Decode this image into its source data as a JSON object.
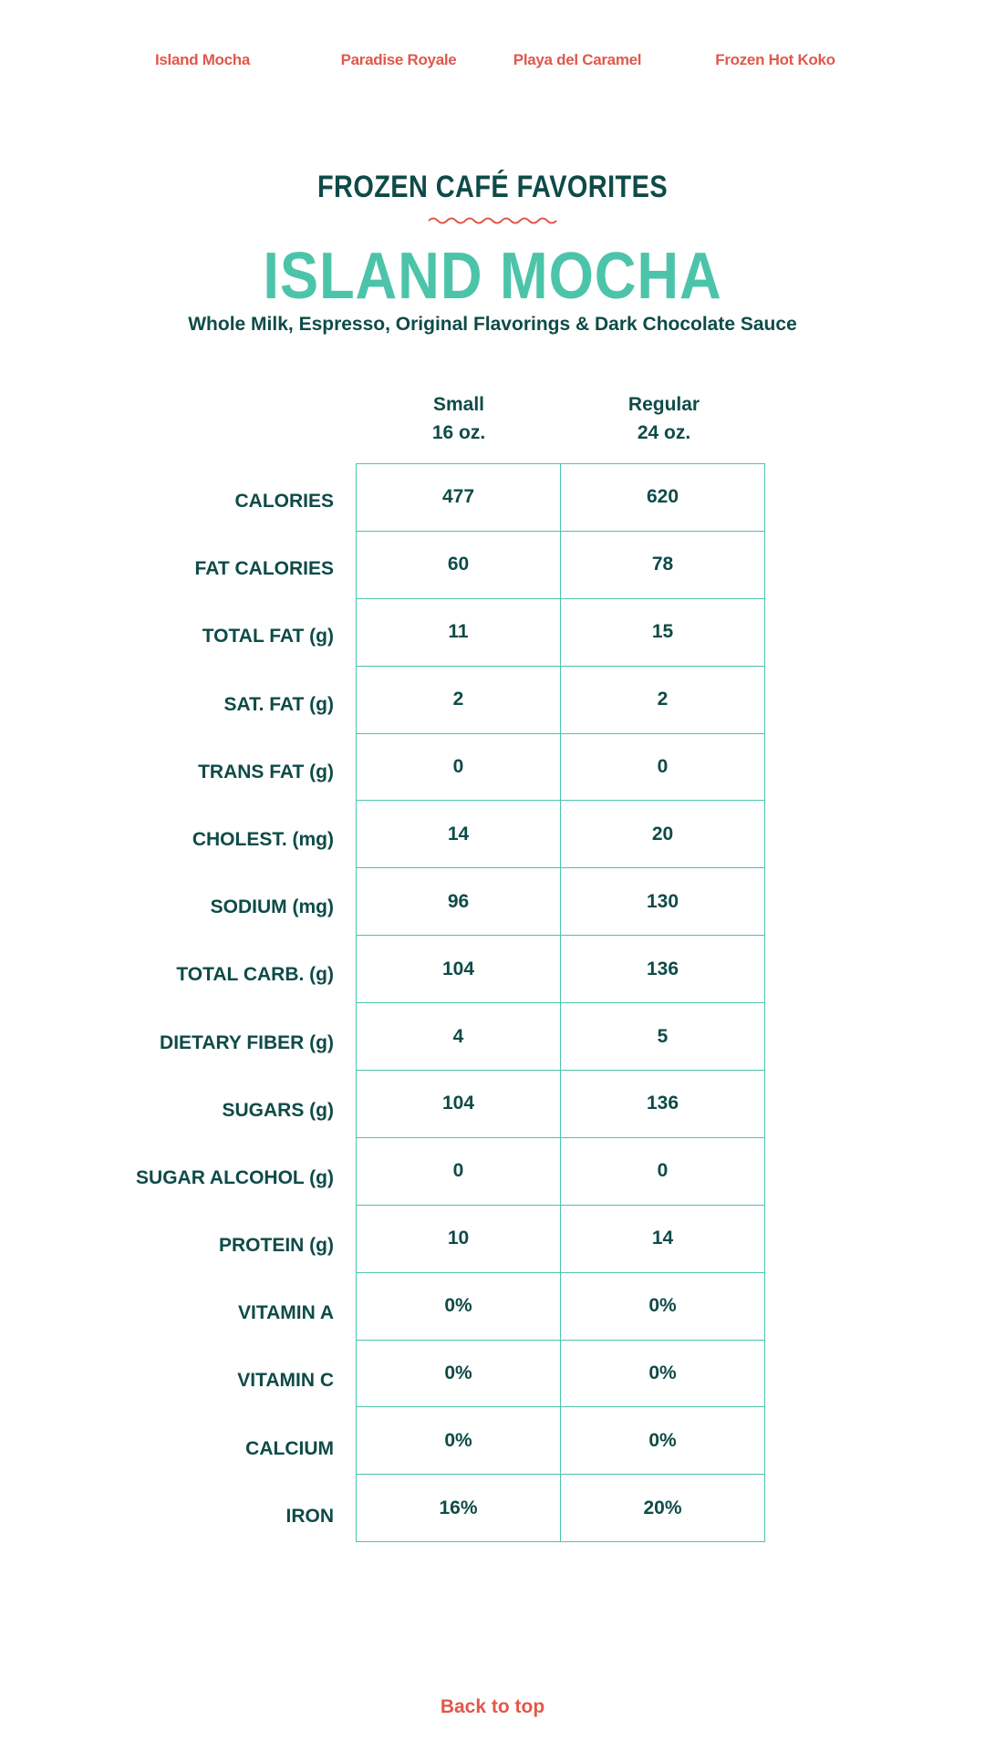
{
  "nav": {
    "items": [
      {
        "label": "Island Mocha"
      },
      {
        "label": "Paradise Royale"
      },
      {
        "label": "Playa del Caramel"
      },
      {
        "label": "Frozen Hot Koko"
      }
    ]
  },
  "header": {
    "eyebrow": "FROZEN CAFÉ FAVORITES",
    "title": "ISLAND MOCHA",
    "subtitle": "Whole Milk, Espresso, Original Flavorings & Dark Chocolate Sauce"
  },
  "columns": [
    {
      "size": "Small",
      "volume": "16 oz."
    },
    {
      "size": "Regular",
      "volume": "24 oz."
    }
  ],
  "rows": [
    {
      "label": "CALORIES",
      "small": "477",
      "regular": "620"
    },
    {
      "label": "FAT CALORIES",
      "small": "60",
      "regular": "78"
    },
    {
      "label": "TOTAL FAT (g)",
      "small": "11",
      "regular": "15"
    },
    {
      "label": "SAT. FAT (g)",
      "small": "2",
      "regular": "2"
    },
    {
      "label": "TRANS FAT (g)",
      "small": "0",
      "regular": "0"
    },
    {
      "label": "CHOLEST. (mg)",
      "small": "14",
      "regular": "20"
    },
    {
      "label": "SODIUM (mg)",
      "small": "96",
      "regular": "130"
    },
    {
      "label": "TOTAL CARB. (g)",
      "small": "104",
      "regular": "136"
    },
    {
      "label": "DIETARY FIBER (g)",
      "small": "4",
      "regular": "5"
    },
    {
      "label": "SUGARS (g)",
      "small": "104",
      "regular": "136"
    },
    {
      "label": "SUGAR ALCOHOL (g)",
      "small": "0",
      "regular": "0"
    },
    {
      "label": "PROTEIN (g)",
      "small": "10",
      "regular": "14"
    },
    {
      "label": "VITAMIN A",
      "small": "0%",
      "regular": "0%"
    },
    {
      "label": "VITAMIN C",
      "small": "0%",
      "regular": "0%"
    },
    {
      "label": "CALCIUM",
      "small": "0%",
      "regular": "0%"
    },
    {
      "label": "IRON",
      "small": "16%",
      "regular": "20%"
    }
  ],
  "footer": {
    "back_to_top": "Back to top"
  },
  "colors": {
    "dark_teal": "#0e4b48",
    "teal": "#4cc4aa",
    "coral": "#e0584a"
  },
  "icons": {
    "divider": "wave-divider-icon"
  }
}
